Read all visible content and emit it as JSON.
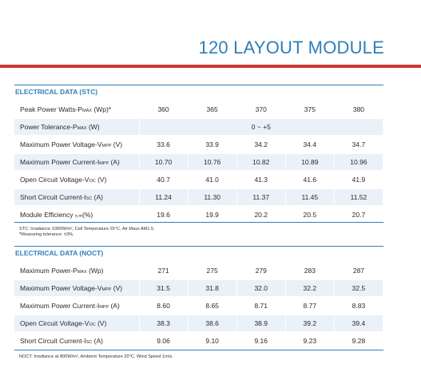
{
  "title": "120 LAYOUT MODULE",
  "colors": {
    "accent": "#2e7fb8",
    "red_bar": "#c8372d",
    "row_shade": "#eaf1f8"
  },
  "stc": {
    "heading": "ELECTRICAL DATA (STC)",
    "rows": [
      {
        "label": "Peak Power Watts-P",
        "sub": "MAX",
        "suffix": " (Wp)*",
        "values": [
          "360",
          "365",
          "370",
          "375",
          "380"
        ]
      },
      {
        "label": "Power Tolerance-P",
        "sub": "MAX",
        "suffix": " (W)",
        "span": "0 ~ +5"
      },
      {
        "label": "Maximum Power Voltage-V",
        "sub": "MPP",
        "suffix": " (V)",
        "values": [
          "33.6",
          "33.9",
          "34.2",
          "34.4",
          "34.7"
        ]
      },
      {
        "label": "Maximum Power Current-I",
        "sub": "MPP",
        "suffix": " (A)",
        "values": [
          "10.70",
          "10.76",
          "10.82",
          "10.89",
          "10.96"
        ]
      },
      {
        "label": "Open Circuit Voltage-V",
        "sub": "OC",
        "suffix": " (V)",
        "values": [
          "40.7",
          "41.0",
          "41.3",
          "41.6",
          "41.9"
        ]
      },
      {
        "label": "Short Circuit Current-I",
        "sub": "SC",
        "suffix": " (A)",
        "values": [
          "11.24",
          "11.30",
          "11.37",
          "11.45",
          "11.52"
        ]
      },
      {
        "label": "Module Efficiency ",
        "sub": "η m",
        "suffix": "(%)",
        "values": [
          "19.6",
          "19.9",
          "20.2",
          "20.5",
          "20.7"
        ]
      }
    ],
    "note_line1": "STC: Irradiance 1000W/m², Cell Temperature 25°C, Air Mass AM1.5.",
    "note_line2": "*Measuring tolerance: ±3%."
  },
  "noct": {
    "heading": "ELECTRICAL DATA (NOCT)",
    "rows": [
      {
        "label": "Maximum Power-P",
        "sub": "MAX",
        "suffix": " (Wp)",
        "values": [
          "271",
          "275",
          "279",
          "283",
          "287"
        ]
      },
      {
        "label": "Maximum Power Voltage-V",
        "sub": "MPP",
        "suffix": " (V)",
        "values": [
          "31.5",
          "31.8",
          "32.0",
          "32.2",
          "32.5"
        ]
      },
      {
        "label": "Maximum Power Current-I",
        "sub": "MPP",
        "suffix": " (A)",
        "values": [
          "8.60",
          "8.65",
          "8.71",
          "8.77",
          "8.83"
        ]
      },
      {
        "label": "Open Circuit Voltage-V",
        "sub": "OC",
        "suffix": " (V)",
        "values": [
          "38.3",
          "38.6",
          "38.9",
          "39.2",
          "39.4"
        ]
      },
      {
        "label": "Short Circuit Current-I",
        "sub": "SC",
        "suffix": " (A)",
        "values": [
          "9.06",
          "9.10",
          "9.16",
          "9.23",
          "9.28"
        ]
      }
    ],
    "note_line1": "NOCT: Irradiance at 800W/m², Ambient Temperature 20°C, Wind Speed 1m/s."
  }
}
